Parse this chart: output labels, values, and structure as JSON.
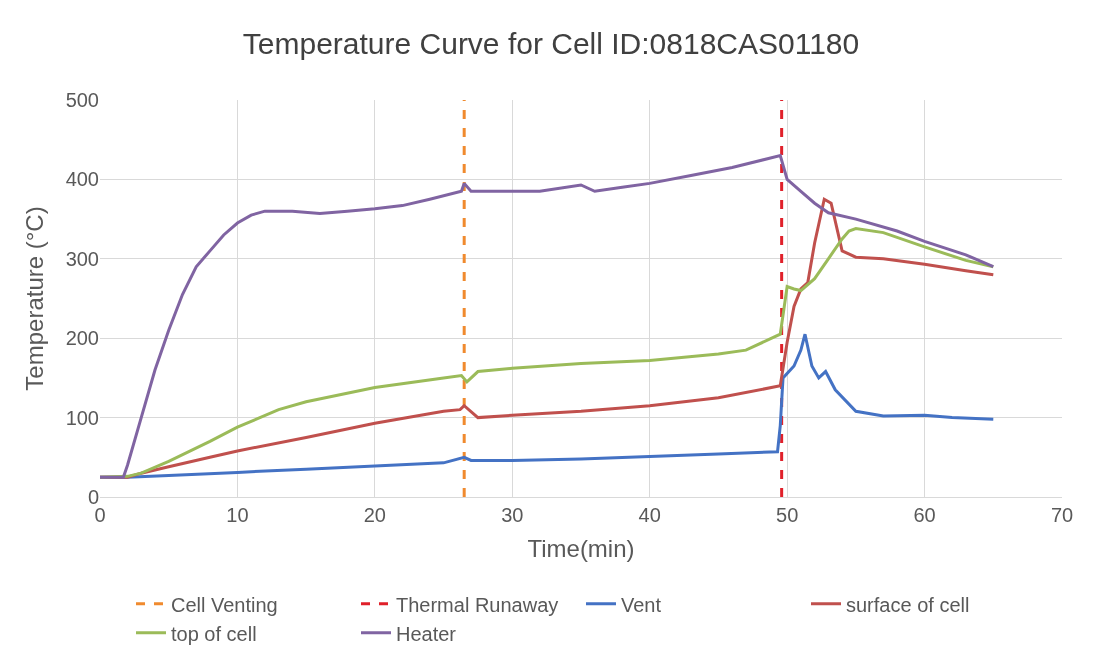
{
  "chart_data": {
    "type": "line",
    "title": "Temperature Curve for Cell ID:0818CAS01180",
    "xlabel": "Time(min)",
    "ylabel": "Temperature (°C)",
    "xlim": [
      0,
      70
    ],
    "xticks": [
      0,
      10,
      20,
      30,
      40,
      50,
      60,
      70
    ],
    "ylim": [
      0,
      500
    ],
    "yticks": [
      0,
      100,
      200,
      300,
      400,
      500
    ],
    "grid": true,
    "legend": "bottom",
    "marker": "none",
    "line_style": "solid",
    "series": [
      {
        "name": "Vent",
        "color": "#4472c4",
        "x": [
          0,
          2,
          5,
          10,
          15,
          20,
          25,
          26.5,
          27,
          30,
          35,
          40,
          45,
          49.3,
          49.5,
          49.7,
          50.5,
          51,
          51.3,
          51.8,
          52.3,
          52.8,
          53.5,
          55,
          57,
          60,
          62,
          65
        ],
        "values": [
          25,
          25,
          27,
          31,
          35,
          39,
          43,
          50,
          46,
          46,
          48,
          51,
          54,
          57,
          90,
          150,
          165,
          185,
          205,
          165,
          150,
          158,
          135,
          108,
          102,
          103,
          100,
          98
        ]
      },
      {
        "name": "surface of cell",
        "color": "#c0504d",
        "x": [
          0,
          2,
          3,
          5,
          8,
          10,
          15,
          20,
          25,
          26.2,
          26.5,
          27.5,
          30,
          35,
          40,
          45,
          49.5,
          50,
          50.5,
          51,
          51.5,
          52,
          52.7,
          53.2,
          54,
          55,
          57,
          60,
          63,
          65
        ],
        "values": [
          25,
          25,
          30,
          38,
          50,
          58,
          75,
          93,
          108,
          110,
          115,
          100,
          103,
          108,
          115,
          125,
          140,
          195,
          240,
          262,
          270,
          320,
          375,
          370,
          310,
          302,
          300,
          293,
          285,
          280
        ]
      },
      {
        "name": "top of cell",
        "color": "#9bbb59",
        "x": [
          0,
          2,
          3,
          5,
          8,
          10,
          13,
          15,
          20,
          25,
          26.3,
          26.7,
          27.5,
          30,
          35,
          40,
          45,
          47,
          49.5,
          50,
          50.5,
          51,
          52,
          53,
          54,
          54.5,
          55,
          57,
          60,
          63,
          65
        ],
        "values": [
          25,
          26,
          30,
          45,
          70,
          88,
          110,
          120,
          138,
          150,
          153,
          145,
          158,
          162,
          168,
          172,
          180,
          185,
          205,
          265,
          262,
          260,
          275,
          300,
          325,
          335,
          338,
          333,
          315,
          298,
          290
        ]
      },
      {
        "name": "Heater",
        "color": "#8064a2",
        "x": [
          0,
          1.7,
          2,
          3,
          4,
          5,
          6,
          7,
          8,
          9,
          10,
          11,
          12,
          14,
          16,
          18,
          20,
          22,
          24,
          26.3,
          26.5,
          27,
          30,
          32,
          35,
          36,
          38,
          40,
          43,
          46,
          49.5,
          50,
          51,
          52,
          53,
          55,
          58,
          60,
          63,
          65
        ],
        "values": [
          25,
          25,
          40,
          100,
          160,
          210,
          255,
          290,
          310,
          330,
          345,
          355,
          360,
          360,
          357,
          360,
          363,
          367,
          375,
          385,
          395,
          385,
          385,
          385,
          393,
          385,
          390,
          395,
          405,
          415,
          430,
          400,
          385,
          370,
          358,
          350,
          335,
          322,
          305,
          290
        ]
      }
    ],
    "ref_lines": [
      {
        "axis": "x",
        "value": 26.5,
        "label": "Cell Venting",
        "color": "#f08a2e",
        "line_style": "dashed"
      },
      {
        "axis": "x",
        "value": 49.6,
        "label": "Thermal Runaway",
        "color": "#e0202a",
        "line_style": "dashed"
      }
    ]
  }
}
